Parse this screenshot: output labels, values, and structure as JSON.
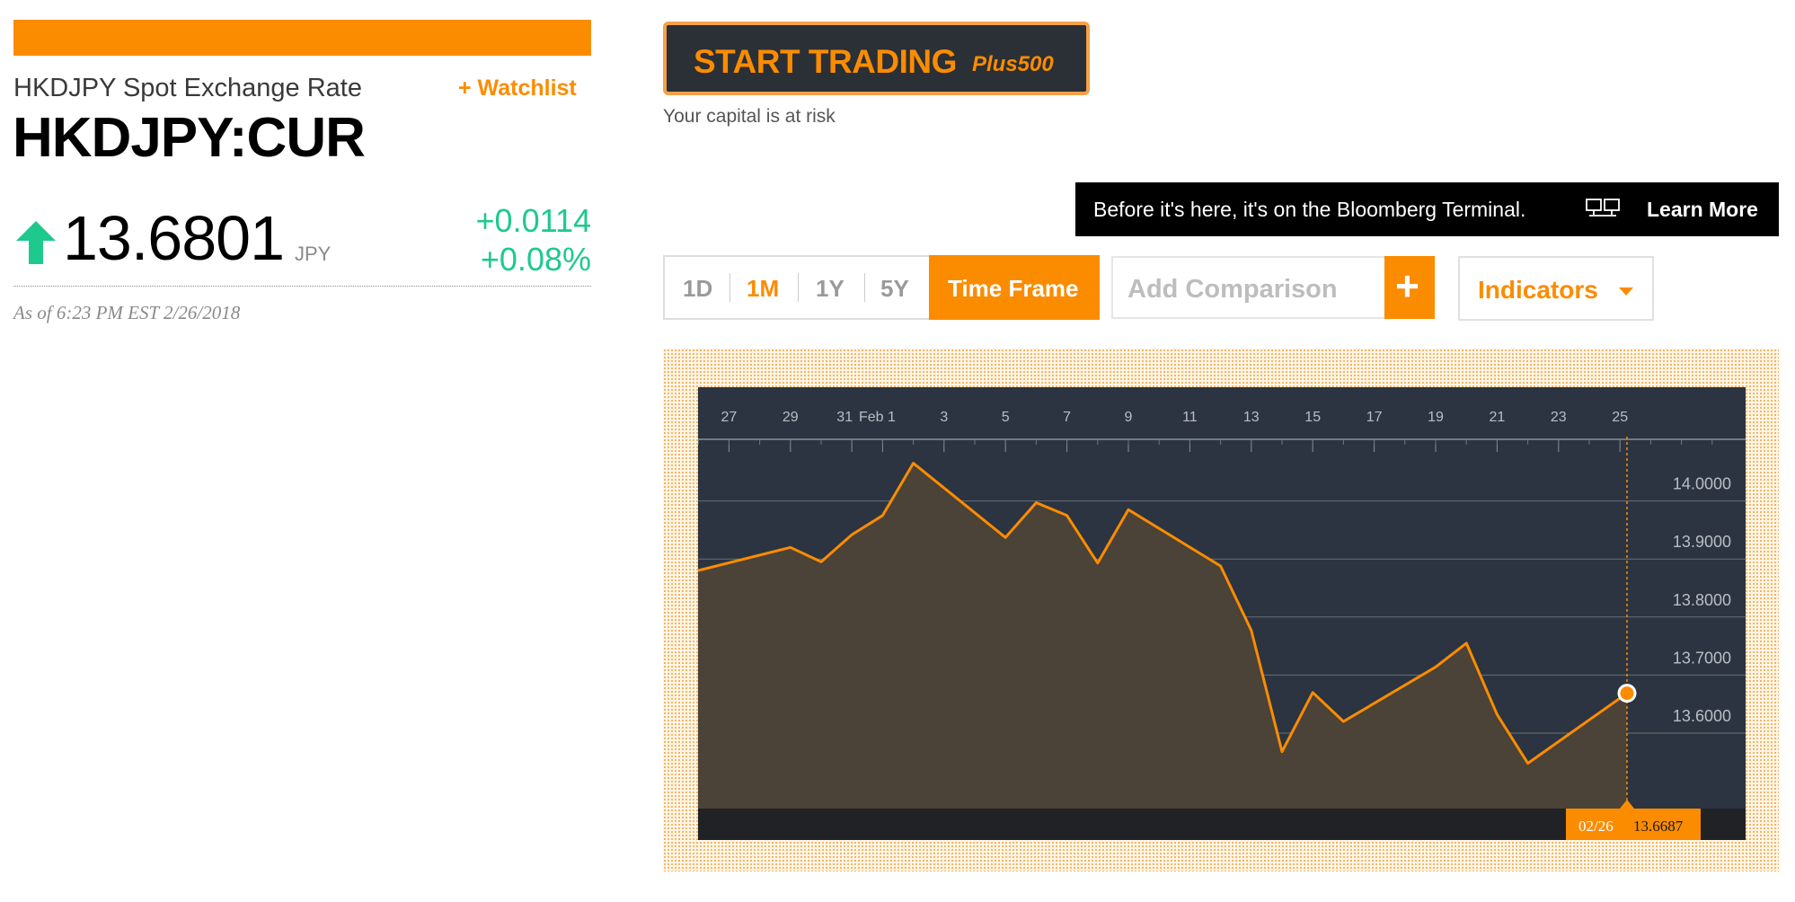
{
  "quote": {
    "name": "HKDJPY Spot Exchange Rate",
    "watchlist_label": "+ Watchlist",
    "ticker": "HKDJPY:CUR",
    "price": "13.6801",
    "currency": "JPY",
    "change_abs": "+0.0114",
    "change_pct": "+0.08%",
    "as_of": "As of 6:23 PM EST 2/26/2018",
    "direction": "up",
    "up_color": "#1ec98e"
  },
  "ad": {
    "trade_label": "START TRADING",
    "brand": "Plus500",
    "risk_text": "Your capital is at risk"
  },
  "terminal_banner": {
    "text": "Before it's here, it's on the Bloomberg Terminal.",
    "icon": "terminal-monitors-icon",
    "learn_more": "Learn More"
  },
  "controls": {
    "ranges": [
      "1D",
      "1M",
      "1Y",
      "5Y"
    ],
    "active_range": "1M",
    "timeframe_label": "Time Frame",
    "comparison_placeholder": "Add Comparison",
    "add_icon": "plus-icon",
    "indicators_label": "Indicators"
  },
  "colors": {
    "accent": "#fb8c00",
    "chart_bg": "#2b3440",
    "chart_area_fill": "#4b4238",
    "up": "#1ec98e"
  },
  "chart_data": {
    "type": "area",
    "x_tick_labels": [
      "27",
      "29",
      "31",
      "Feb 1",
      "3",
      "5",
      "7",
      "9",
      "11",
      "13",
      "15",
      "17",
      "19",
      "21",
      "23",
      "25"
    ],
    "y_tick_labels": [
      "14.0000",
      "13.9000",
      "13.8000",
      "13.7000",
      "13.6000"
    ],
    "ylim": [
      13.47,
      14.1
    ],
    "grid": true,
    "x": [
      "2018-01-26",
      "2018-01-29",
      "2018-01-30",
      "2018-01-31",
      "2018-02-01",
      "2018-02-02",
      "2018-02-05",
      "2018-02-06",
      "2018-02-07",
      "2018-02-08",
      "2018-02-09",
      "2018-02-12",
      "2018-02-13",
      "2018-02-14",
      "2018-02-15",
      "2018-02-16",
      "2018-02-19",
      "2018-02-20",
      "2018-02-21",
      "2018-02-22",
      "2018-02-23",
      "2018-02-26"
    ],
    "y": [
      13.88,
      13.92,
      13.895,
      13.942,
      13.975,
      14.065,
      13.937,
      13.997,
      13.975,
      13.893,
      13.985,
      13.888,
      13.777,
      13.568,
      13.67,
      13.62,
      13.714,
      13.755,
      13.632,
      13.548,
      13.6687,
      13.6687
    ],
    "hover": {
      "date_label": "02/26",
      "value_label": "13.6687"
    }
  }
}
